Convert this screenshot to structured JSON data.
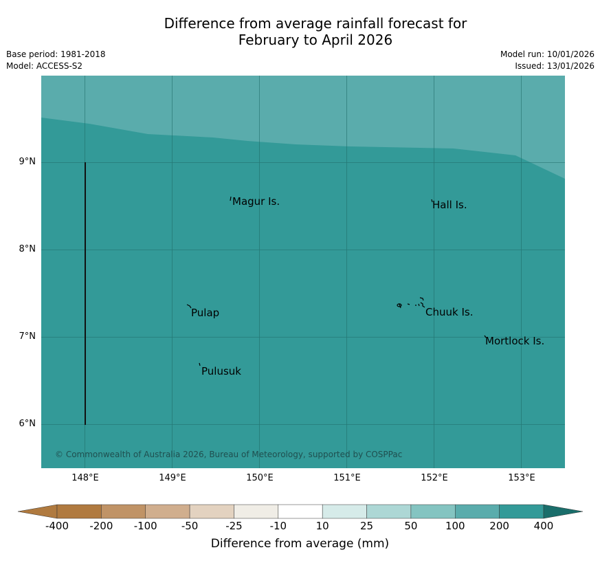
{
  "title": {
    "line1": "Difference from average rainfall forecast for",
    "line2": "February to April 2026"
  },
  "meta": {
    "base_period": "Base period: 1981-2018",
    "model": "Model: ACCESS-S2",
    "model_run": "Model run: 10/01/2026",
    "issued": "Issued: 13/01/2026"
  },
  "map": {
    "lat_labels": [
      "9°N",
      "8°N",
      "7°N",
      "6°N"
    ],
    "lon_labels": [
      "148°E",
      "149°E",
      "150°E",
      "151°E",
      "152°E",
      "153°E"
    ],
    "places": {
      "magur": "Magur Is.",
      "hall": "Hall Is.",
      "pulap": "Pulap",
      "chuuk": "Chuuk Is.",
      "mortlock": "Mortlock Is.",
      "pulusuk": "Pulusuk"
    },
    "copyright": "© Commonwealth of Australia 2026, Bureau of Meteorology, supported by COSPPac",
    "colors": {
      "dark_teal": "#339a98",
      "light_teal": "#5aacac"
    }
  },
  "colorbar": {
    "labels": [
      "-400",
      "-200",
      "-100",
      "-50",
      "-25",
      "-10",
      "10",
      "25",
      "50",
      "100",
      "200",
      "400"
    ],
    "colors": [
      "#b07a3f",
      "#c09366",
      "#d0ae8e",
      "#e3d2c0",
      "#f0ede6",
      "#ffffff",
      "#d6ebe9",
      "#add7d5",
      "#84c4c1",
      "#5aacac",
      "#339a98",
      "#1a6e6b"
    ],
    "title": "Difference from average (mm)"
  }
}
